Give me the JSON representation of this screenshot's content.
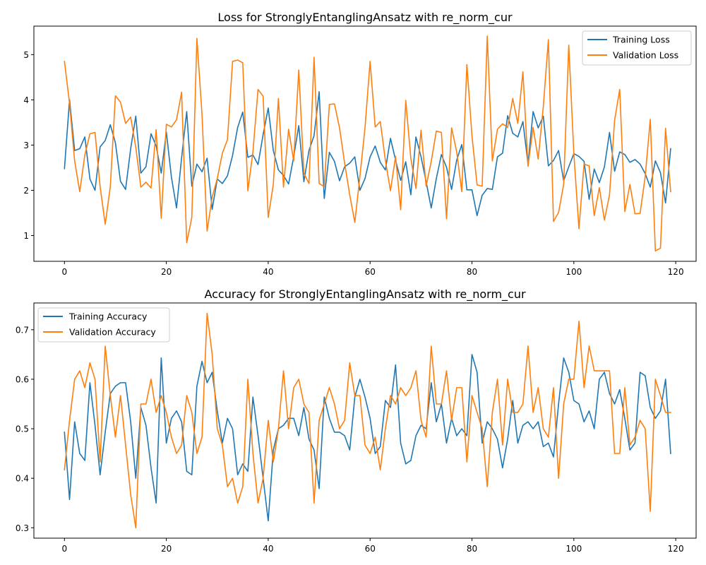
{
  "colors": {
    "training": "#1f77b4",
    "validation": "#ff7f0e"
  },
  "chart_data": [
    {
      "type": "line",
      "title": "Loss for StronglyEntanglingAnsatz with re_norm_cur",
      "xlabel": "",
      "ylabel": "",
      "xlim": [
        -6,
        124
      ],
      "ylim": [
        0.43,
        5.63
      ],
      "xticks": [
        0,
        20,
        40,
        60,
        80,
        100,
        120
      ],
      "yticks": [
        1,
        2,
        3,
        4,
        5
      ],
      "grid": false,
      "legend": "top-right",
      "series": [
        {
          "name": "Training Loss",
          "color": "#1f77b4",
          "values": [
            2.48,
            4.0,
            2.88,
            2.92,
            3.18,
            2.25,
            2.0,
            2.96,
            3.1,
            3.45,
            3.05,
            2.2,
            2.02,
            2.92,
            3.64,
            2.38,
            2.52,
            3.25,
            2.98,
            2.38,
            3.29,
            2.29,
            1.61,
            2.72,
            3.74,
            2.09,
            2.58,
            2.41,
            2.71,
            1.58,
            2.25,
            2.15,
            2.32,
            2.77,
            3.39,
            3.73,
            2.73,
            2.78,
            2.57,
            3.23,
            3.82,
            2.88,
            2.45,
            2.33,
            2.14,
            2.74,
            3.43,
            2.19,
            2.88,
            3.21,
            4.18,
            1.82,
            2.84,
            2.64,
            2.21,
            2.52,
            2.6,
            2.74,
            2.0,
            2.26,
            2.74,
            2.98,
            2.62,
            2.45,
            3.15,
            2.67,
            2.22,
            2.63,
            1.9,
            3.18,
            2.74,
            2.19,
            1.61,
            2.26,
            2.79,
            2.51,
            2.02,
            2.67,
            3.01,
            2.01,
            2.01,
            1.44,
            1.89,
            2.04,
            2.02,
            2.74,
            2.82,
            3.65,
            3.26,
            3.18,
            3.52,
            2.58,
            3.74,
            3.38,
            3.64,
            2.54,
            2.66,
            2.88,
            2.21,
            2.52,
            2.81,
            2.75,
            2.64,
            1.8,
            2.47,
            2.17,
            2.52,
            3.28,
            2.42,
            2.85,
            2.79,
            2.62,
            2.68,
            2.58,
            2.37,
            2.07,
            2.65,
            2.39,
            1.72,
            2.92
          ]
        },
        {
          "name": "Validation Loss",
          "color": "#ff7f0e",
          "values": [
            4.85,
            3.92,
            2.65,
            1.97,
            2.78,
            3.25,
            3.28,
            2.08,
            1.25,
            2.08,
            4.09,
            3.95,
            3.48,
            3.62,
            2.95,
            2.07,
            2.18,
            2.05,
            3.34,
            1.38,
            3.46,
            3.4,
            3.56,
            4.17,
            0.84,
            1.4,
            5.36,
            3.68,
            1.1,
            1.85,
            2.26,
            2.82,
            3.12,
            4.85,
            4.88,
            4.82,
            1.99,
            2.85,
            4.23,
            4.08,
            1.4,
            2.13,
            4.03,
            2.07,
            3.35,
            2.65,
            4.66,
            2.38,
            2.15,
            4.94,
            2.15,
            2.08,
            3.9,
            3.91,
            3.38,
            2.6,
            1.9,
            1.29,
            2.31,
            3.38,
            4.85,
            3.4,
            3.52,
            2.66,
            1.99,
            2.75,
            1.57,
            3.99,
            2.7,
            2.04,
            3.33,
            2.09,
            2.64,
            3.31,
            3.28,
            1.37,
            3.38,
            2.85,
            1.97,
            4.78,
            3.2,
            2.12,
            2.09,
            5.41,
            2.65,
            3.35,
            3.47,
            3.39,
            4.03,
            3.48,
            4.62,
            2.53,
            3.39,
            2.69,
            3.85,
            5.33,
            1.31,
            1.51,
            2.13,
            5.21,
            2.8,
            1.15,
            2.58,
            2.54,
            1.44,
            2.06,
            1.34,
            1.9,
            3.55,
            4.23,
            1.53,
            2.13,
            1.48,
            1.49,
            2.3,
            3.57,
            0.66,
            0.72,
            3.37,
            1.97
          ]
        }
      ]
    },
    {
      "type": "line",
      "title": "Accuracy for StronglyEntanglingAnsatz with re_norm_cur",
      "xlabel": "",
      "ylabel": "",
      "xlim": [
        -6,
        124
      ],
      "ylim": [
        0.279,
        0.754
      ],
      "xticks": [
        0,
        20,
        40,
        60,
        80,
        100,
        120
      ],
      "yticks": [
        0.3,
        0.4,
        0.5,
        0.6,
        0.7
      ],
      "grid": false,
      "legend": "top-left",
      "series": [
        {
          "name": "Training Accuracy",
          "color": "#1f77b4",
          "values": [
            0.493,
            0.357,
            0.514,
            0.45,
            0.436,
            0.593,
            0.507,
            0.407,
            0.493,
            0.571,
            0.586,
            0.593,
            0.593,
            0.514,
            0.4,
            0.543,
            0.507,
            0.421,
            0.35,
            0.643,
            0.471,
            0.521,
            0.536,
            0.514,
            0.414,
            0.407,
            0.586,
            0.636,
            0.593,
            0.614,
            0.536,
            0.471,
            0.521,
            0.5,
            0.407,
            0.429,
            0.414,
            0.564,
            0.486,
            0.4,
            0.314,
            0.457,
            0.5,
            0.507,
            0.521,
            0.521,
            0.486,
            0.543,
            0.479,
            0.457,
            0.379,
            0.564,
            0.521,
            0.493,
            0.493,
            0.486,
            0.457,
            0.564,
            0.6,
            0.564,
            0.521,
            0.45,
            0.464,
            0.557,
            0.543,
            0.629,
            0.471,
            0.429,
            0.436,
            0.486,
            0.507,
            0.5,
            0.593,
            0.514,
            0.55,
            0.471,
            0.521,
            0.486,
            0.5,
            0.486,
            0.65,
            0.614,
            0.471,
            0.514,
            0.5,
            0.479,
            0.421,
            0.479,
            0.557,
            0.471,
            0.507,
            0.514,
            0.5,
            0.514,
            0.464,
            0.471,
            0.443,
            0.55,
            0.643,
            0.614,
            0.557,
            0.55,
            0.514,
            0.536,
            0.5,
            0.6,
            0.614,
            0.571,
            0.55,
            0.579,
            0.521,
            0.457,
            0.471,
            0.614,
            0.607,
            0.543,
            0.521,
            0.536,
            0.6,
            0.45
          ]
        },
        {
          "name": "Validation Accuracy",
          "color": "#ff7f0e",
          "values": [
            0.417,
            0.517,
            0.6,
            0.617,
            0.583,
            0.633,
            0.6,
            0.433,
            0.667,
            0.567,
            0.483,
            0.567,
            0.467,
            0.367,
            0.3,
            0.55,
            0.55,
            0.6,
            0.533,
            0.567,
            0.533,
            0.483,
            0.45,
            0.467,
            0.567,
            0.533,
            0.45,
            0.483,
            0.733,
            0.65,
            0.5,
            0.467,
            0.383,
            0.4,
            0.35,
            0.383,
            0.6,
            0.45,
            0.35,
            0.4,
            0.517,
            0.433,
            0.5,
            0.617,
            0.5,
            0.583,
            0.6,
            0.55,
            0.533,
            0.35,
            0.517,
            0.55,
            0.583,
            0.55,
            0.5,
            0.517,
            0.633,
            0.567,
            0.567,
            0.467,
            0.45,
            0.483,
            0.417,
            0.5,
            0.567,
            0.55,
            0.583,
            0.567,
            0.583,
            0.617,
            0.517,
            0.483,
            0.667,
            0.55,
            0.55,
            0.617,
            0.517,
            0.583,
            0.583,
            0.433,
            0.567,
            0.533,
            0.5,
            0.383,
            0.533,
            0.6,
            0.467,
            0.6,
            0.533,
            0.533,
            0.55,
            0.667,
            0.533,
            0.583,
            0.5,
            0.483,
            0.583,
            0.4,
            0.55,
            0.6,
            0.6,
            0.717,
            0.583,
            0.667,
            0.617,
            0.617,
            0.617,
            0.617,
            0.45,
            0.45,
            0.583,
            0.467,
            0.483,
            0.517,
            0.5,
            0.333,
            0.6,
            0.567,
            0.533,
            0.533
          ]
        }
      ]
    }
  ]
}
